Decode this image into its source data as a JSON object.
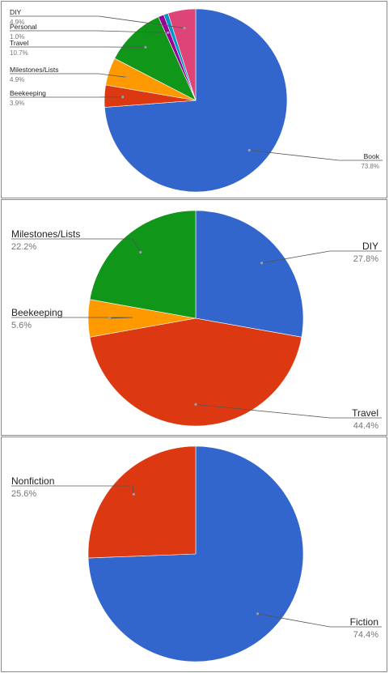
{
  "chart_data": [
    {
      "type": "pie",
      "title": "",
      "legend": "none (callout labels)",
      "slices": [
        {
          "label": "Book",
          "value": 73.8,
          "value_label": "73.8%",
          "color": "#3366cc"
        },
        {
          "label": "Beekeeping",
          "value": 3.9,
          "value_label": "3.9%",
          "color": "#dc3912"
        },
        {
          "label": "Milestones/Lists",
          "value": 4.9,
          "value_label": "4.9%",
          "color": "#ff9900"
        },
        {
          "label": "Travel",
          "value": 10.7,
          "value_label": "10.7%",
          "color": "#109618"
        },
        {
          "label": "Personal",
          "value": 1.0,
          "value_label": "1.0%",
          "color": "#990099"
        },
        {
          "label": "",
          "value": 0.8,
          "value_label": "",
          "color": "#0099c6"
        },
        {
          "label": "DIY",
          "value": 4.9,
          "value_label": "4.9%",
          "color": "#dd4477"
        }
      ]
    },
    {
      "type": "pie",
      "title": "",
      "legend": "none (callout labels)",
      "slices": [
        {
          "label": "DIY",
          "value": 27.8,
          "value_label": "27.8%",
          "color": "#3366cc"
        },
        {
          "label": "Travel",
          "value": 44.4,
          "value_label": "44.4%",
          "color": "#dc3912"
        },
        {
          "label": "Beekeeping",
          "value": 5.6,
          "value_label": "5.6%",
          "color": "#ff9900"
        },
        {
          "label": "Milestones/Lists",
          "value": 22.2,
          "value_label": "22.2%",
          "color": "#109618"
        }
      ]
    },
    {
      "type": "pie",
      "title": "",
      "legend": "none (callout labels)",
      "slices": [
        {
          "label": "Fiction",
          "value": 74.4,
          "value_label": "74.4%",
          "color": "#3366cc"
        },
        {
          "label": "Nonfiction",
          "value": 25.6,
          "value_label": "25.6%",
          "color": "#dc3912"
        }
      ]
    }
  ]
}
